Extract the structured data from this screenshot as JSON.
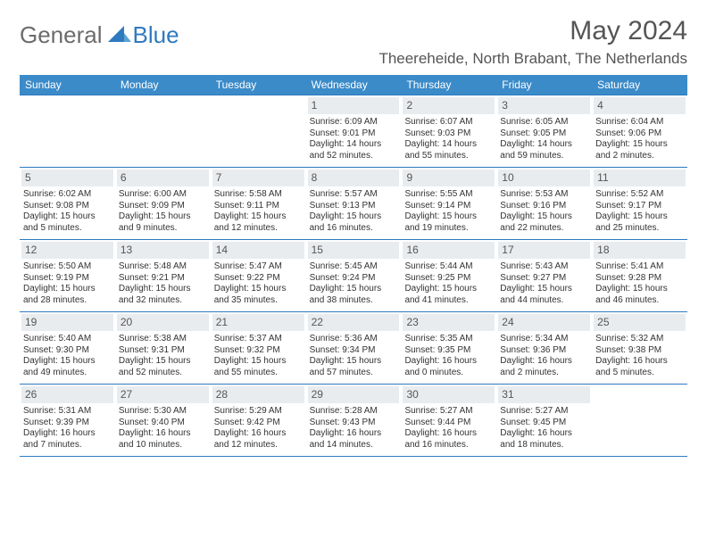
{
  "brand": {
    "general": "General",
    "blue": "Blue"
  },
  "title": "May 2024",
  "location": "Theereheide, North Brabant, The Netherlands",
  "colors": {
    "header_bg": "#3b8bc9",
    "header_text": "#ffffff",
    "rule": "#2f7abf",
    "daynum_bg": "#e9ecef",
    "body_text": "#333333",
    "brand_gray": "#6b6b6b",
    "brand_blue": "#2f7abf"
  },
  "day_names": [
    "Sunday",
    "Monday",
    "Tuesday",
    "Wednesday",
    "Thursday",
    "Friday",
    "Saturday"
  ],
  "weeks": [
    [
      {
        "empty": true
      },
      {
        "empty": true
      },
      {
        "empty": true
      },
      {
        "n": "1",
        "sr": "Sunrise: 6:09 AM",
        "ss": "Sunset: 9:01 PM",
        "dl1": "Daylight: 14 hours",
        "dl2": "and 52 minutes."
      },
      {
        "n": "2",
        "sr": "Sunrise: 6:07 AM",
        "ss": "Sunset: 9:03 PM",
        "dl1": "Daylight: 14 hours",
        "dl2": "and 55 minutes."
      },
      {
        "n": "3",
        "sr": "Sunrise: 6:05 AM",
        "ss": "Sunset: 9:05 PM",
        "dl1": "Daylight: 14 hours",
        "dl2": "and 59 minutes."
      },
      {
        "n": "4",
        "sr": "Sunrise: 6:04 AM",
        "ss": "Sunset: 9:06 PM",
        "dl1": "Daylight: 15 hours",
        "dl2": "and 2 minutes."
      }
    ],
    [
      {
        "n": "5",
        "sr": "Sunrise: 6:02 AM",
        "ss": "Sunset: 9:08 PM",
        "dl1": "Daylight: 15 hours",
        "dl2": "and 5 minutes."
      },
      {
        "n": "6",
        "sr": "Sunrise: 6:00 AM",
        "ss": "Sunset: 9:09 PM",
        "dl1": "Daylight: 15 hours",
        "dl2": "and 9 minutes."
      },
      {
        "n": "7",
        "sr": "Sunrise: 5:58 AM",
        "ss": "Sunset: 9:11 PM",
        "dl1": "Daylight: 15 hours",
        "dl2": "and 12 minutes."
      },
      {
        "n": "8",
        "sr": "Sunrise: 5:57 AM",
        "ss": "Sunset: 9:13 PM",
        "dl1": "Daylight: 15 hours",
        "dl2": "and 16 minutes."
      },
      {
        "n": "9",
        "sr": "Sunrise: 5:55 AM",
        "ss": "Sunset: 9:14 PM",
        "dl1": "Daylight: 15 hours",
        "dl2": "and 19 minutes."
      },
      {
        "n": "10",
        "sr": "Sunrise: 5:53 AM",
        "ss": "Sunset: 9:16 PM",
        "dl1": "Daylight: 15 hours",
        "dl2": "and 22 minutes."
      },
      {
        "n": "11",
        "sr": "Sunrise: 5:52 AM",
        "ss": "Sunset: 9:17 PM",
        "dl1": "Daylight: 15 hours",
        "dl2": "and 25 minutes."
      }
    ],
    [
      {
        "n": "12",
        "sr": "Sunrise: 5:50 AM",
        "ss": "Sunset: 9:19 PM",
        "dl1": "Daylight: 15 hours",
        "dl2": "and 28 minutes."
      },
      {
        "n": "13",
        "sr": "Sunrise: 5:48 AM",
        "ss": "Sunset: 9:21 PM",
        "dl1": "Daylight: 15 hours",
        "dl2": "and 32 minutes."
      },
      {
        "n": "14",
        "sr": "Sunrise: 5:47 AM",
        "ss": "Sunset: 9:22 PM",
        "dl1": "Daylight: 15 hours",
        "dl2": "and 35 minutes."
      },
      {
        "n": "15",
        "sr": "Sunrise: 5:45 AM",
        "ss": "Sunset: 9:24 PM",
        "dl1": "Daylight: 15 hours",
        "dl2": "and 38 minutes."
      },
      {
        "n": "16",
        "sr": "Sunrise: 5:44 AM",
        "ss": "Sunset: 9:25 PM",
        "dl1": "Daylight: 15 hours",
        "dl2": "and 41 minutes."
      },
      {
        "n": "17",
        "sr": "Sunrise: 5:43 AM",
        "ss": "Sunset: 9:27 PM",
        "dl1": "Daylight: 15 hours",
        "dl2": "and 44 minutes."
      },
      {
        "n": "18",
        "sr": "Sunrise: 5:41 AM",
        "ss": "Sunset: 9:28 PM",
        "dl1": "Daylight: 15 hours",
        "dl2": "and 46 minutes."
      }
    ],
    [
      {
        "n": "19",
        "sr": "Sunrise: 5:40 AM",
        "ss": "Sunset: 9:30 PM",
        "dl1": "Daylight: 15 hours",
        "dl2": "and 49 minutes."
      },
      {
        "n": "20",
        "sr": "Sunrise: 5:38 AM",
        "ss": "Sunset: 9:31 PM",
        "dl1": "Daylight: 15 hours",
        "dl2": "and 52 minutes."
      },
      {
        "n": "21",
        "sr": "Sunrise: 5:37 AM",
        "ss": "Sunset: 9:32 PM",
        "dl1": "Daylight: 15 hours",
        "dl2": "and 55 minutes."
      },
      {
        "n": "22",
        "sr": "Sunrise: 5:36 AM",
        "ss": "Sunset: 9:34 PM",
        "dl1": "Daylight: 15 hours",
        "dl2": "and 57 minutes."
      },
      {
        "n": "23",
        "sr": "Sunrise: 5:35 AM",
        "ss": "Sunset: 9:35 PM",
        "dl1": "Daylight: 16 hours",
        "dl2": "and 0 minutes."
      },
      {
        "n": "24",
        "sr": "Sunrise: 5:34 AM",
        "ss": "Sunset: 9:36 PM",
        "dl1": "Daylight: 16 hours",
        "dl2": "and 2 minutes."
      },
      {
        "n": "25",
        "sr": "Sunrise: 5:32 AM",
        "ss": "Sunset: 9:38 PM",
        "dl1": "Daylight: 16 hours",
        "dl2": "and 5 minutes."
      }
    ],
    [
      {
        "n": "26",
        "sr": "Sunrise: 5:31 AM",
        "ss": "Sunset: 9:39 PM",
        "dl1": "Daylight: 16 hours",
        "dl2": "and 7 minutes."
      },
      {
        "n": "27",
        "sr": "Sunrise: 5:30 AM",
        "ss": "Sunset: 9:40 PM",
        "dl1": "Daylight: 16 hours",
        "dl2": "and 10 minutes."
      },
      {
        "n": "28",
        "sr": "Sunrise: 5:29 AM",
        "ss": "Sunset: 9:42 PM",
        "dl1": "Daylight: 16 hours",
        "dl2": "and 12 minutes."
      },
      {
        "n": "29",
        "sr": "Sunrise: 5:28 AM",
        "ss": "Sunset: 9:43 PM",
        "dl1": "Daylight: 16 hours",
        "dl2": "and 14 minutes."
      },
      {
        "n": "30",
        "sr": "Sunrise: 5:27 AM",
        "ss": "Sunset: 9:44 PM",
        "dl1": "Daylight: 16 hours",
        "dl2": "and 16 minutes."
      },
      {
        "n": "31",
        "sr": "Sunrise: 5:27 AM",
        "ss": "Sunset: 9:45 PM",
        "dl1": "Daylight: 16 hours",
        "dl2": "and 18 minutes."
      },
      {
        "empty": true
      }
    ]
  ]
}
